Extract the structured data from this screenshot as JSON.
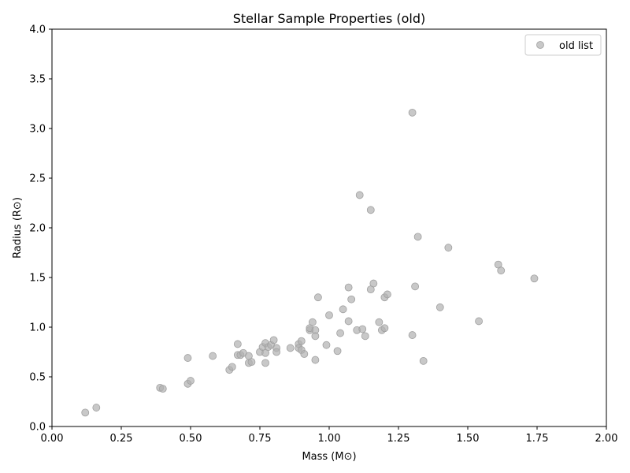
{
  "chart_data": {
    "type": "scatter",
    "title": "Stellar Sample Properties (old)",
    "xlabel": "Mass (M⊙)",
    "ylabel": "Radius (R⊙)",
    "xlim": [
      0,
      2
    ],
    "ylim": [
      0,
      4
    ],
    "xticks": [
      0.0,
      0.25,
      0.5,
      0.75,
      1.0,
      1.25,
      1.5,
      1.75,
      2.0
    ],
    "xtick_labels": [
      "0.00",
      "0.25",
      "0.50",
      "0.75",
      "1.00",
      "1.25",
      "1.50",
      "1.75",
      "2.00"
    ],
    "yticks": [
      0.0,
      0.5,
      1.0,
      1.5,
      2.0,
      2.5,
      3.0,
      3.5,
      4.0
    ],
    "ytick_labels": [
      "0.0",
      "0.5",
      "1.0",
      "1.5",
      "2.0",
      "2.5",
      "3.0",
      "3.5",
      "4.0"
    ],
    "grid": false,
    "legend": {
      "position": "top-right",
      "entries": [
        "old list"
      ]
    },
    "series": [
      {
        "name": "old list",
        "color": "#b0b0b0",
        "points": [
          [
            0.12,
            0.14
          ],
          [
            0.16,
            0.19
          ],
          [
            0.39,
            0.39
          ],
          [
            0.4,
            0.38
          ],
          [
            0.49,
            0.43
          ],
          [
            0.5,
            0.46
          ],
          [
            0.49,
            0.69
          ],
          [
            0.58,
            0.71
          ],
          [
            0.64,
            0.57
          ],
          [
            0.65,
            0.6
          ],
          [
            0.67,
            0.72
          ],
          [
            0.68,
            0.72
          ],
          [
            0.67,
            0.83
          ],
          [
            0.69,
            0.74
          ],
          [
            0.71,
            0.71
          ],
          [
            0.71,
            0.64
          ],
          [
            0.72,
            0.65
          ],
          [
            0.75,
            0.75
          ],
          [
            0.76,
            0.8
          ],
          [
            0.77,
            0.74
          ],
          [
            0.77,
            0.84
          ],
          [
            0.77,
            0.64
          ],
          [
            0.78,
            0.8
          ],
          [
            0.79,
            0.82
          ],
          [
            0.8,
            0.87
          ],
          [
            0.81,
            0.79
          ],
          [
            0.81,
            0.75
          ],
          [
            0.86,
            0.79
          ],
          [
            0.89,
            0.83
          ],
          [
            0.89,
            0.79
          ],
          [
            0.9,
            0.86
          ],
          [
            0.9,
            0.77
          ],
          [
            0.91,
            0.73
          ],
          [
            0.93,
            0.97
          ],
          [
            0.93,
            0.99
          ],
          [
            0.94,
            1.05
          ],
          [
            0.95,
            0.97
          ],
          [
            0.95,
            0.91
          ],
          [
            0.95,
            0.67
          ],
          [
            0.96,
            1.3
          ],
          [
            0.99,
            0.82
          ],
          [
            1.0,
            1.12
          ],
          [
            1.03,
            0.76
          ],
          [
            1.04,
            0.94
          ],
          [
            1.05,
            1.18
          ],
          [
            1.07,
            1.06
          ],
          [
            1.07,
            1.4
          ],
          [
            1.08,
            1.28
          ],
          [
            1.1,
            0.97
          ],
          [
            1.12,
            0.98
          ],
          [
            1.13,
            0.91
          ],
          [
            1.15,
            1.38
          ],
          [
            1.16,
            1.44
          ],
          [
            1.18,
            1.05
          ],
          [
            1.19,
            0.97
          ],
          [
            1.2,
            0.99
          ],
          [
            1.2,
            1.3
          ],
          [
            1.21,
            1.33
          ],
          [
            1.3,
            0.92
          ],
          [
            1.31,
            1.41
          ],
          [
            1.34,
            0.66
          ],
          [
            1.4,
            1.2
          ],
          [
            1.54,
            1.06
          ],
          [
            1.61,
            1.63
          ],
          [
            1.62,
            1.57
          ],
          [
            1.74,
            1.49
          ],
          [
            1.32,
            1.91
          ],
          [
            1.43,
            1.8
          ],
          [
            1.11,
            2.33
          ],
          [
            1.15,
            2.18
          ],
          [
            1.3,
            3.16
          ]
        ]
      }
    ]
  }
}
